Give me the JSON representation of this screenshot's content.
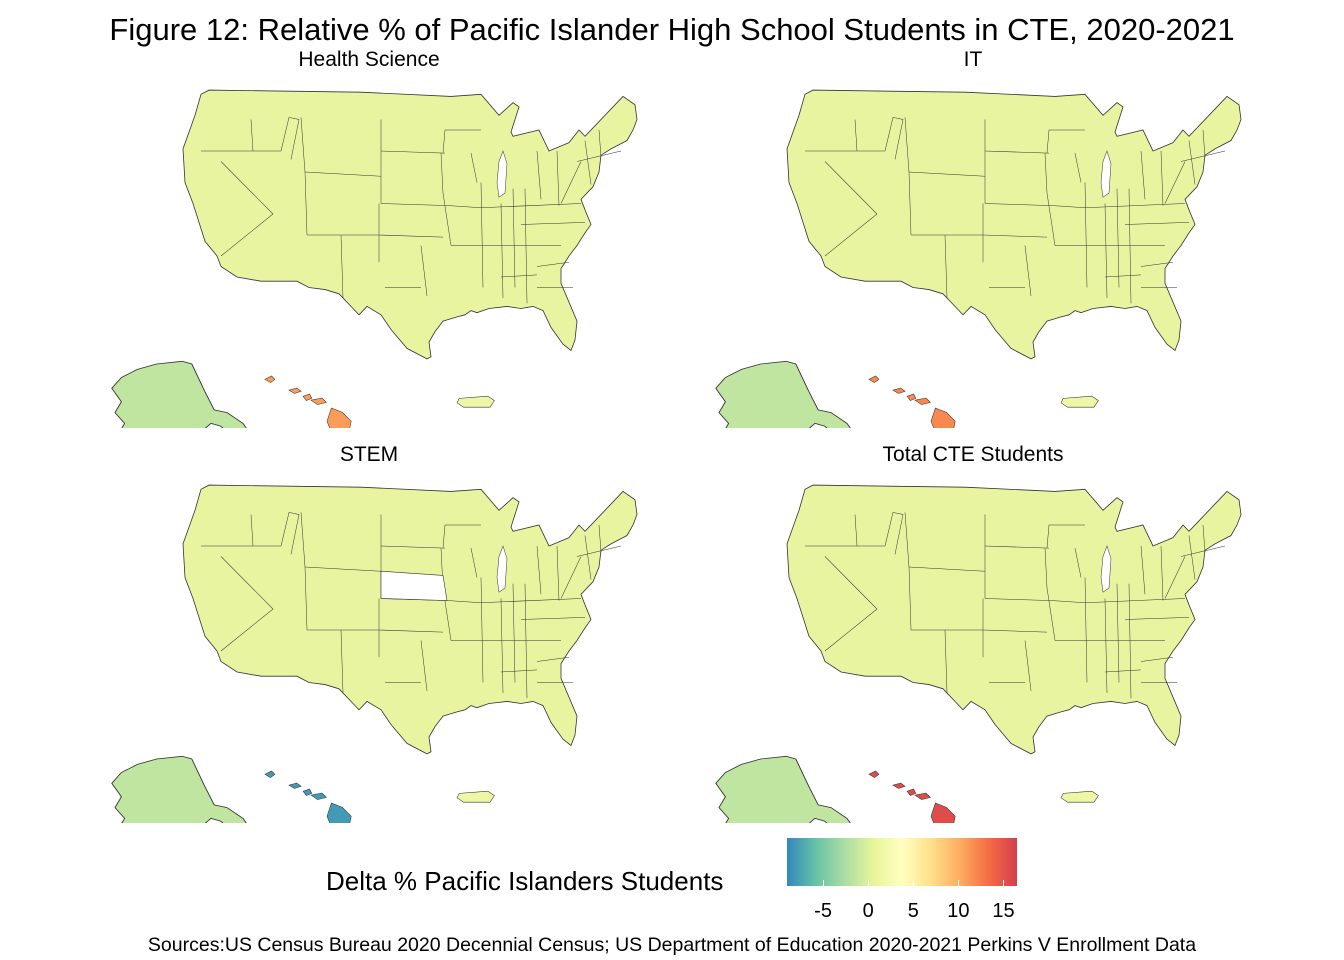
{
  "title": "Figure 12: Relative % of Pacific Islander High School Students in CTE, 2020-2021",
  "colors": {
    "mainland": "#e8f4a0",
    "alaska": "#e2f29b",
    "puerto_rico": "#edf7a6",
    "missing": "#ffffff",
    "border": "#333333"
  },
  "panels": [
    {
      "id": "health",
      "title": "Health  Science",
      "hawaii_delta": 11,
      "alaska_delta": -1.5,
      "nebraska_missing": false
    },
    {
      "id": "it",
      "title": "IT",
      "hawaii_delta": 12,
      "alaska_delta": -1.5,
      "nebraska_missing": false
    },
    {
      "id": "stem",
      "title": "STEM",
      "hawaii_delta": -8,
      "alaska_delta": -1.5,
      "nebraska_missing": true
    },
    {
      "id": "total",
      "title": "Total  CTE  Students",
      "hawaii_delta": 15.5,
      "alaska_delta": -1.5,
      "nebraska_missing": false
    }
  ],
  "legend": {
    "title": "Delta % Pacific Islanders Students",
    "min": -9,
    "max": 16.5,
    "ticks": [
      -5,
      0,
      5,
      10,
      15
    ],
    "tick_labels": [
      "-5",
      "0",
      "5",
      "10",
      "15"
    ],
    "palette": [
      "#3288bd",
      "#66c2a5",
      "#abdda4",
      "#e6f598",
      "#ffffbf",
      "#fee08b",
      "#fdae61",
      "#f46d43",
      "#d53e4f"
    ]
  },
  "source": "Sources:US Census Bureau 2020 Decennial Census; US Department of Education 2020-2021 Perkins V Enrollment Data"
}
